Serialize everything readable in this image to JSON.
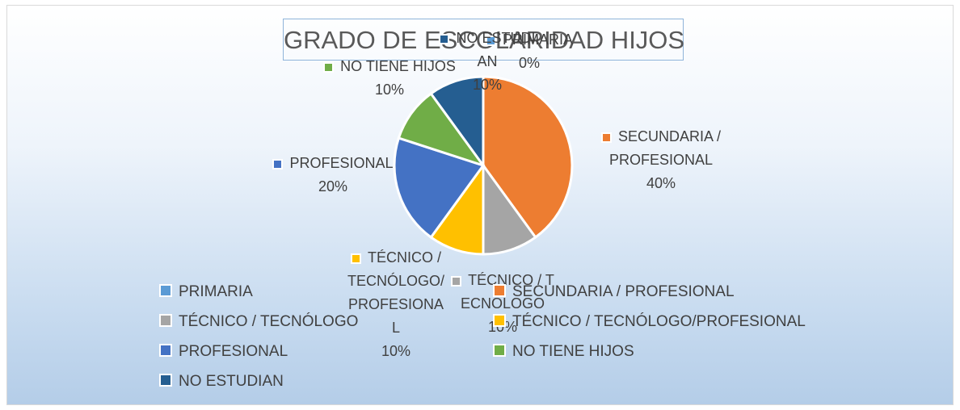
{
  "chart_data": {
    "type": "pie",
    "title": "GRADO DE ESCOLARIDAD HIJOS",
    "categories": [
      "PRIMARIA",
      "SECUNDARIA / PROFESIONAL",
      "TÉCNICO / TECNÓLOGO",
      "TÉCNICO / TECNÓLOGO/PROFESIONAL",
      "PROFESIONAL",
      "NO TIENE HIJOS",
      "NO ESTUDIAN"
    ],
    "values": [
      0,
      40,
      10,
      10,
      20,
      10,
      10
    ],
    "value_labels": [
      "0%",
      "40%",
      "10%",
      "10%",
      "20%",
      "10%",
      "10%"
    ],
    "colors": [
      "#5b9bd5",
      "#ed7d31",
      "#a5a5a5",
      "#ffc000",
      "#4472c4",
      "#70ad47",
      "#255e91"
    ],
    "legend": "bottom"
  }
}
